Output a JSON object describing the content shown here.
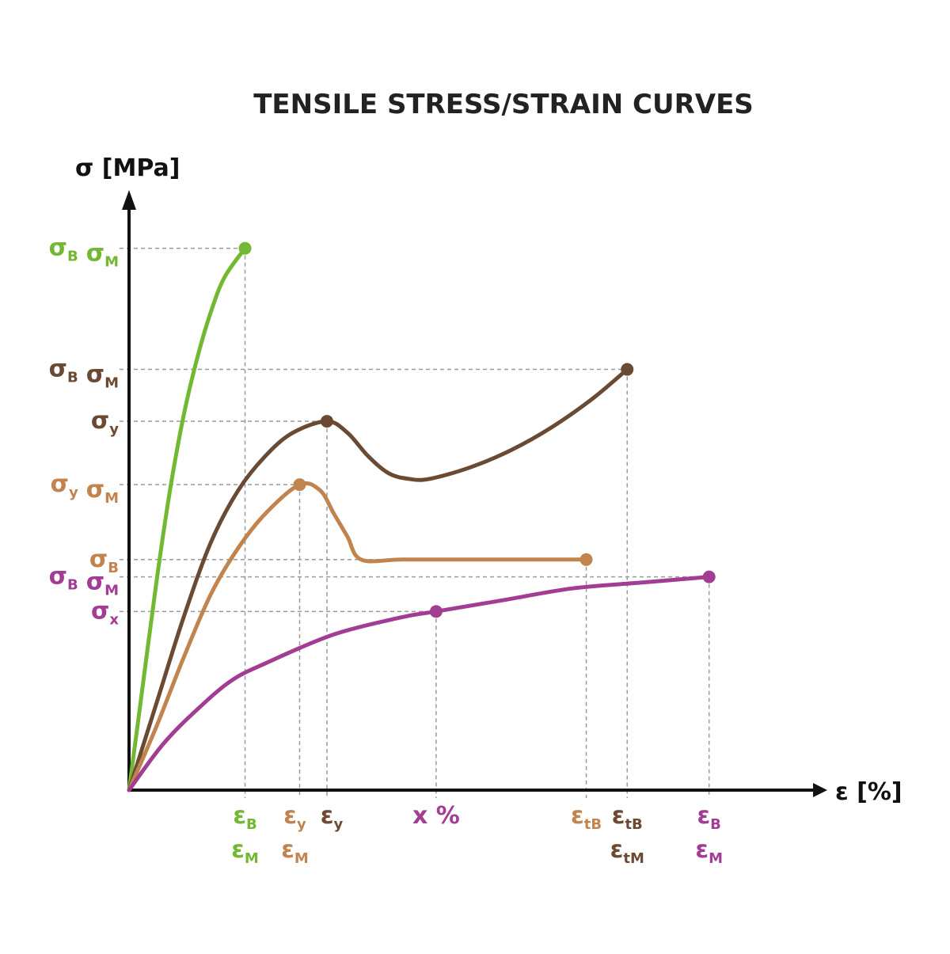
{
  "chart_data": {
    "type": "line",
    "title": "TENSILE STRESS/STRAIN CURVES",
    "ylabel": "σ [MPa]",
    "xlabel": "ε [%]",
    "xlim": [
      0,
      100
    ],
    "ylim": [
      0,
      100
    ],
    "colors": {
      "axis": "#111111",
      "guide": "#9a9a9a",
      "green": "#73b833",
      "dark_brown": "#6b4a33",
      "light_brown": "#c2844f",
      "purple": "#a33d94"
    },
    "series": [
      {
        "name": "green",
        "color_key": "green",
        "points": [
          [
            0,
            0
          ],
          [
            2,
            18
          ],
          [
            4,
            36
          ],
          [
            6,
            52
          ],
          [
            8,
            65
          ],
          [
            10,
            75
          ],
          [
            12,
            83
          ],
          [
            14,
            89
          ],
          [
            17,
            94
          ]
        ],
        "end_point": [
          17,
          94
        ]
      },
      {
        "name": "dark_brown",
        "color_key": "dark_brown",
        "points": [
          [
            0,
            0
          ],
          [
            4,
            15
          ],
          [
            8,
            30
          ],
          [
            12,
            43
          ],
          [
            16,
            52
          ],
          [
            20,
            58
          ],
          [
            24,
            62
          ],
          [
            29,
            64
          ],
          [
            32,
            62
          ],
          [
            35,
            58
          ],
          [
            38,
            55
          ],
          [
            41,
            54
          ],
          [
            44,
            54
          ],
          [
            50,
            56
          ],
          [
            56,
            59
          ],
          [
            62,
            63
          ],
          [
            68,
            68
          ],
          [
            73,
            73
          ]
        ],
        "markers": [
          [
            29,
            64
          ],
          [
            73,
            73
          ]
        ]
      },
      {
        "name": "light_brown",
        "color_key": "light_brown",
        "points": [
          [
            0,
            0
          ],
          [
            4,
            11
          ],
          [
            8,
            23
          ],
          [
            12,
            34
          ],
          [
            16,
            42
          ],
          [
            20,
            48
          ],
          [
            25,
            53
          ],
          [
            28,
            52
          ],
          [
            30,
            48
          ],
          [
            32,
            44
          ],
          [
            34,
            40
          ],
          [
            40,
            40
          ],
          [
            50,
            40
          ],
          [
            60,
            40
          ],
          [
            67,
            40
          ]
        ],
        "markers": [
          [
            25,
            53
          ],
          [
            67,
            40
          ]
        ]
      },
      {
        "name": "purple",
        "color_key": "purple",
        "points": [
          [
            0,
            0
          ],
          [
            5,
            8
          ],
          [
            10,
            14
          ],
          [
            15,
            19
          ],
          [
            20,
            22
          ],
          [
            30,
            27
          ],
          [
            40,
            30
          ],
          [
            45,
            31
          ],
          [
            55,
            33
          ],
          [
            65,
            35
          ],
          [
            75,
            36
          ],
          [
            85,
            37
          ]
        ],
        "markers": [
          [
            45,
            31
          ],
          [
            85,
            37
          ]
        ]
      }
    ],
    "y_annotations": [
      {
        "value": 94,
        "color_key": "green",
        "tokens": [
          {
            "s": "σ",
            "sub": "B"
          },
          {
            "s": "σ",
            "sub": "M"
          }
        ]
      },
      {
        "value": 73,
        "color_key": "dark_brown",
        "tokens": [
          {
            "s": "σ",
            "sub": "B"
          },
          {
            "s": "σ",
            "sub": "M"
          }
        ]
      },
      {
        "value": 64,
        "color_key": "dark_brown",
        "tokens": [
          {
            "s": "σ",
            "sub": "y"
          }
        ]
      },
      {
        "value": 53,
        "color_key": "light_brown",
        "tokens": [
          {
            "s": "σ",
            "sub": "y"
          },
          {
            "s": "σ",
            "sub": "M"
          }
        ]
      },
      {
        "value": 40,
        "color_key": "light_brown",
        "tokens": [
          {
            "s": "σ",
            "sub": "B"
          }
        ]
      },
      {
        "value": 37,
        "color_key": "purple",
        "tokens": [
          {
            "s": "σ",
            "sub": "B"
          },
          {
            "s": "σ",
            "sub": "M"
          }
        ]
      },
      {
        "value": 31,
        "color_key": "purple",
        "tokens": [
          {
            "s": "σ",
            "sub": "x"
          }
        ]
      }
    ],
    "x_annotations": [
      {
        "value": 17,
        "color_key": "green",
        "lines": [
          [
            {
              "s": "ε",
              "sub": "B"
            }
          ],
          [
            {
              "s": "ε",
              "sub": "M"
            }
          ]
        ]
      },
      {
        "value": 25,
        "color_key": "light_brown",
        "lines": [
          [
            {
              "s": "ε",
              "sub": "y"
            }
          ],
          [
            {
              "s": "ε",
              "sub": "M"
            }
          ]
        ]
      },
      {
        "value": 29,
        "color_key": "dark_brown",
        "lines": [
          [
            {
              "s": "ε",
              "sub": "y"
            }
          ]
        ]
      },
      {
        "value": 45,
        "color_key": "purple",
        "lines": [
          [
            {
              "s": "x %",
              "sub": ""
            }
          ]
        ]
      },
      {
        "value": 67,
        "color_key": "light_brown",
        "lines": [
          [
            {
              "s": "ε",
              "sub": "tB"
            }
          ]
        ]
      },
      {
        "value": 73,
        "color_key": "dark_brown",
        "lines": [
          [
            {
              "s": "ε",
              "sub": "tB"
            }
          ],
          [
            {
              "s": "ε",
              "sub": "tM"
            }
          ]
        ]
      },
      {
        "value": 85,
        "color_key": "purple",
        "lines": [
          [
            {
              "s": "ε",
              "sub": "B"
            }
          ],
          [
            {
              "s": "ε",
              "sub": "M"
            }
          ]
        ]
      }
    ]
  }
}
